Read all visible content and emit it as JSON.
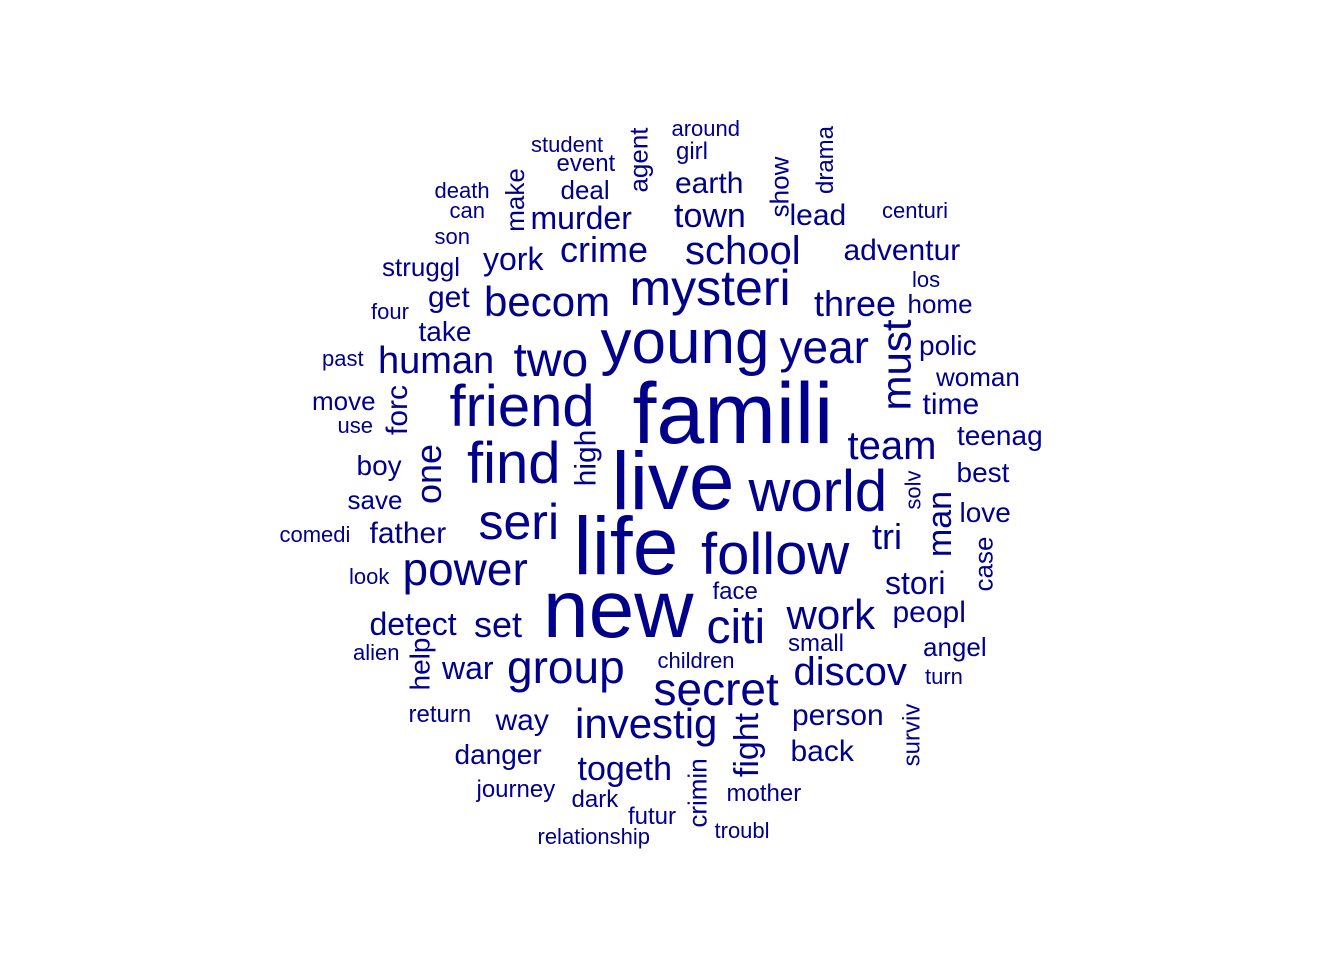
{
  "cloud": {
    "color": "#00008B",
    "words": [
      {
        "text": "famili",
        "freq": 10
      },
      {
        "text": "live",
        "freq": 9.5
      },
      {
        "text": "life",
        "freq": 9.5
      },
      {
        "text": "new",
        "freq": 9.5
      },
      {
        "text": "young",
        "freq": 7.3
      },
      {
        "text": "friend",
        "freq": 7
      },
      {
        "text": "find",
        "freq": 7
      },
      {
        "text": "world",
        "freq": 7
      },
      {
        "text": "follow",
        "freq": 7
      },
      {
        "text": "seri",
        "freq": 6.2
      },
      {
        "text": "mysteri",
        "freq": 6
      },
      {
        "text": "two",
        "freq": 5.6
      },
      {
        "text": "citi",
        "freq": 5.6
      },
      {
        "text": "year",
        "freq": 5.3
      },
      {
        "text": "secret",
        "freq": 5.3
      },
      {
        "text": "power",
        "freq": 5.3
      },
      {
        "text": "group",
        "freq": 5.3
      },
      {
        "text": "becom",
        "freq": 5
      },
      {
        "text": "must",
        "freq": 5
      },
      {
        "text": "investig",
        "freq": 5
      },
      {
        "text": "work",
        "freq": 5
      },
      {
        "text": "school",
        "freq": 4.8
      },
      {
        "text": "team",
        "freq": 4.8
      },
      {
        "text": "discov",
        "freq": 4.8
      },
      {
        "text": "human",
        "freq": 4.6
      },
      {
        "text": "three",
        "freq": 4.4
      },
      {
        "text": "crime",
        "freq": 4.4
      },
      {
        "text": "set",
        "freq": 4.4
      },
      {
        "text": "one",
        "freq": 4.4
      },
      {
        "text": "tri",
        "freq": 4.4
      },
      {
        "text": "togeth",
        "freq": 4.2
      },
      {
        "text": "fight",
        "freq": 4.2
      },
      {
        "text": "man",
        "freq": 4
      },
      {
        "text": "town",
        "freq": 4
      },
      {
        "text": "murder",
        "freq": 4
      },
      {
        "text": "york",
        "freq": 4
      },
      {
        "text": "detect",
        "freq": 4
      },
      {
        "text": "stori",
        "freq": 4
      },
      {
        "text": "war",
        "freq": 3.8
      },
      {
        "text": "way",
        "freq": 3.8
      },
      {
        "text": "person",
        "freq": 3.8
      },
      {
        "text": "back",
        "freq": 3.8
      },
      {
        "text": "father",
        "freq": 3.8
      },
      {
        "text": "forc",
        "freq": 3.6
      },
      {
        "text": "high",
        "freq": 3.6
      },
      {
        "text": "get",
        "freq": 3.6
      },
      {
        "text": "adventur",
        "freq": 3.6
      },
      {
        "text": "peopl",
        "freq": 3.6
      },
      {
        "text": "time",
        "freq": 3.6
      },
      {
        "text": "earth",
        "freq": 3.6
      },
      {
        "text": "lead",
        "freq": 3.6
      },
      {
        "text": "take",
        "freq": 3.4
      },
      {
        "text": "boy",
        "freq": 3.4
      },
      {
        "text": "best",
        "freq": 3.4
      },
      {
        "text": "love",
        "freq": 3.4
      },
      {
        "text": "help",
        "freq": 3.4
      },
      {
        "text": "teenag",
        "freq": 3.2
      },
      {
        "text": "danger",
        "freq": 3.2
      },
      {
        "text": "polic",
        "freq": 3.2
      },
      {
        "text": "agent",
        "freq": 3.2
      },
      {
        "text": "make",
        "freq": 3.2
      },
      {
        "text": "angel",
        "freq": 3.2
      },
      {
        "text": "deal",
        "freq": 3.2
      },
      {
        "text": "save",
        "freq": 3.2
      },
      {
        "text": "struggl",
        "freq": 3
      },
      {
        "text": "crimin",
        "freq": 3
      },
      {
        "text": "show",
        "freq": 3
      },
      {
        "text": "woman",
        "freq": 3
      },
      {
        "text": "move",
        "freq": 3
      },
      {
        "text": "home",
        "freq": 3
      },
      {
        "text": "case",
        "freq": 3
      },
      {
        "text": "surviv",
        "freq": 2.8
      },
      {
        "text": "girl",
        "freq": 2.8
      },
      {
        "text": "event",
        "freq": 2.8
      },
      {
        "text": "drama",
        "freq": 2.8
      },
      {
        "text": "face",
        "freq": 2.8
      },
      {
        "text": "small",
        "freq": 2.8
      },
      {
        "text": "mother",
        "freq": 2.8
      },
      {
        "text": "journey",
        "freq": 2.8
      },
      {
        "text": "dark",
        "freq": 2.8
      },
      {
        "text": "futur",
        "freq": 2.8
      },
      {
        "text": "return",
        "freq": 2.8
      },
      {
        "text": "student",
        "freq": 2.6
      },
      {
        "text": "around",
        "freq": 2.6
      },
      {
        "text": "centuri",
        "freq": 2.6
      },
      {
        "text": "death",
        "freq": 2.6
      },
      {
        "text": "four",
        "freq": 2.6
      },
      {
        "text": "past",
        "freq": 2.6
      },
      {
        "text": "use",
        "freq": 2.6
      },
      {
        "text": "look",
        "freq": 2.6
      },
      {
        "text": "children",
        "freq": 2.6
      },
      {
        "text": "turn",
        "freq": 2.6
      },
      {
        "text": "solv",
        "freq": 2.6
      },
      {
        "text": "los",
        "freq": 2.6
      },
      {
        "text": "son",
        "freq": 2.6
      },
      {
        "text": "can",
        "freq": 2.6
      },
      {
        "text": "comedi",
        "freq": 2.6
      },
      {
        "text": "alien",
        "freq": 2.6
      },
      {
        "text": "relationship",
        "freq": 2.6
      },
      {
        "text": "troubl",
        "freq": 2.6
      }
    ]
  }
}
